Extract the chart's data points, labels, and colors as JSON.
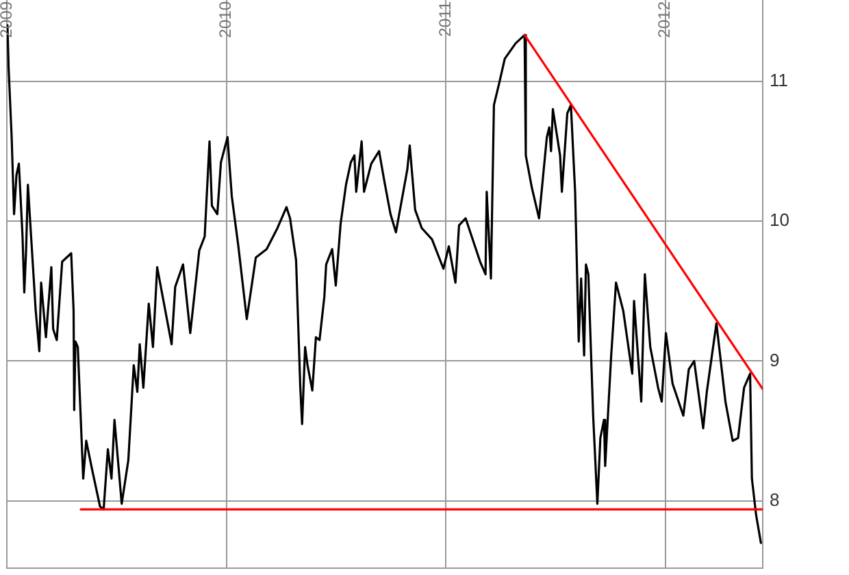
{
  "chart_data": {
    "type": "line",
    "series": [
      {
        "color": "#000000",
        "x": [
          "2009-01-02",
          "2009-01-04",
          "2009-01-09",
          "2009-01-13",
          "2009-01-17",
          "2009-01-21",
          "2009-01-27",
          "2009-01-30",
          "2009-02-02",
          "2009-02-05",
          "2009-02-18",
          "2009-02-24",
          "2009-02-27",
          "2009-03-07",
          "2009-03-16",
          "2009-03-19",
          "2009-03-25",
          "2009-04-03",
          "2009-04-18",
          "2009-04-22",
          "2009-04-23",
          "2009-04-25",
          "2009-04-29",
          "2009-05-08",
          "2009-05-13",
          "2009-05-23",
          "2009-06-05",
          "2009-06-11",
          "2009-06-18",
          "2009-06-24",
          "2009-06-29",
          "2009-07-11",
          "2009-07-22",
          "2009-07-31",
          "2009-08-06",
          "2009-08-10",
          "2009-08-16",
          "2009-08-25",
          "2009-09-01",
          "2009-09-08",
          "2009-10-02",
          "2009-10-08",
          "2009-10-21",
          "2009-11-02",
          "2009-11-17",
          "2009-11-26",
          "2009-12-04",
          "2009-12-08",
          "2009-12-17",
          "2009-12-23",
          "2010-01-03",
          "2010-01-10",
          "2010-01-21",
          "2010-02-04",
          "2010-02-19",
          "2010-03-09",
          "2010-03-27",
          "2010-04-11",
          "2010-04-17",
          "2010-04-27",
          "2010-05-04",
          "2010-05-07",
          "2010-05-12",
          "2010-05-16",
          "2010-05-24",
          "2010-05-30",
          "2010-06-05",
          "2010-06-13",
          "2010-06-16",
          "2010-06-26",
          "2010-07-02",
          "2010-07-10",
          "2010-07-19",
          "2010-07-27",
          "2010-08-02",
          "2010-08-05",
          "2010-08-14",
          "2010-08-18",
          "2010-08-30",
          "2010-09-12",
          "2010-09-21",
          "2010-10-01",
          "2010-10-10",
          "2010-10-29",
          "2010-11-02",
          "2010-11-11",
          "2010-11-22",
          "2010-12-09",
          "2010-12-28",
          "2011-01-06",
          "2011-01-17",
          "2011-01-23",
          "2011-02-03",
          "2011-02-27",
          "2011-03-08",
          "2011-03-10",
          "2011-03-17",
          "2011-03-22",
          "2011-03-31",
          "2011-04-09",
          "2011-04-27",
          "2011-05-12",
          "2011-05-14",
          "2011-05-24",
          "2011-06-05",
          "2011-06-18",
          "2011-06-22",
          "2011-06-25",
          "2011-06-28",
          "2011-07-10",
          "2011-07-13",
          "2011-07-22",
          "2011-07-28",
          "2011-08-04",
          "2011-08-10",
          "2011-08-14",
          "2011-08-19",
          "2011-08-22",
          "2011-08-26",
          "2011-09-03",
          "2011-09-10",
          "2011-09-15",
          "2011-09-21",
          "2011-09-23",
          "2011-10-03",
          "2011-10-11",
          "2011-10-23",
          "2011-11-07",
          "2011-11-10",
          "2011-11-22",
          "2011-11-28",
          "2011-12-07",
          "2011-12-20",
          "2011-12-26",
          "2012-01-02",
          "2012-01-13",
          "2012-01-31",
          "2012-02-09",
          "2012-02-18",
          "2012-03-04",
          "2012-03-10",
          "2012-03-26",
          "2012-04-10",
          "2012-04-22",
          "2012-05-01",
          "2012-05-11",
          "2012-05-21",
          "2012-05-24",
          "2012-05-31",
          "2012-06-08"
        ],
        "values": [
          11.4,
          11.09,
          10.6,
          10.05,
          10.33,
          10.41,
          9.9,
          9.49,
          9.79,
          10.26,
          9.36,
          9.07,
          9.56,
          9.17,
          9.67,
          9.23,
          9.15,
          9.71,
          9.77,
          9.36,
          8.65,
          9.14,
          9.1,
          8.16,
          8.43,
          8.22,
          7.96,
          7.94,
          8.37,
          8.16,
          8.58,
          7.98,
          8.29,
          8.97,
          8.78,
          9.12,
          8.81,
          9.41,
          9.1,
          9.67,
          9.12,
          9.53,
          9.69,
          9.2,
          9.79,
          9.89,
          10.57,
          10.11,
          10.05,
          10.42,
          10.6,
          10.18,
          9.82,
          9.3,
          9.74,
          9.8,
          9.95,
          10.1,
          10.02,
          9.72,
          8.81,
          8.55,
          9.1,
          8.97,
          8.79,
          9.17,
          9.15,
          9.46,
          9.69,
          9.8,
          9.54,
          9.98,
          10.26,
          10.42,
          10.47,
          10.21,
          10.57,
          10.21,
          10.41,
          10.5,
          10.28,
          10.05,
          9.92,
          10.37,
          10.54,
          10.08,
          9.95,
          9.87,
          9.66,
          9.82,
          9.56,
          9.97,
          10.02,
          9.71,
          9.62,
          10.21,
          9.59,
          10.83,
          10.99,
          11.16,
          11.27,
          11.33,
          10.47,
          10.24,
          10.02,
          10.6,
          10.67,
          10.5,
          10.8,
          10.47,
          10.21,
          10.77,
          10.83,
          10.21,
          9.14,
          9.59,
          9.04,
          9.69,
          9.62,
          8.61,
          7.98,
          8.45,
          8.58,
          8.25,
          9.04,
          9.56,
          9.36,
          8.91,
          9.43,
          8.71,
          9.62,
          9.1,
          8.81,
          8.71,
          9.2,
          8.84,
          8.61,
          8.94,
          9.0,
          8.52,
          8.78,
          9.27,
          8.71,
          8.43,
          8.45,
          8.81,
          8.91,
          8.16,
          7.9,
          7.7
        ]
      },
      {
        "type": "line",
        "color": "#ff0000",
        "x": [
          "2011-05-12",
          "2012-06-11"
        ],
        "values": [
          11.33,
          8.8
        ]
      },
      {
        "type": "line",
        "color": "#ff0000",
        "x": [
          "2009-05-04",
          "2012-06-11"
        ],
        "values": [
          7.94,
          7.94
        ]
      }
    ],
    "xlim": [
      "2009-01-01",
      "2012-06-11"
    ],
    "xticks": [
      "2009",
      "2010",
      "2011",
      "2012"
    ],
    "ylim": [
      7.52,
      11.58
    ],
    "yticks": [
      8,
      9,
      10,
      11
    ],
    "grid": true
  }
}
